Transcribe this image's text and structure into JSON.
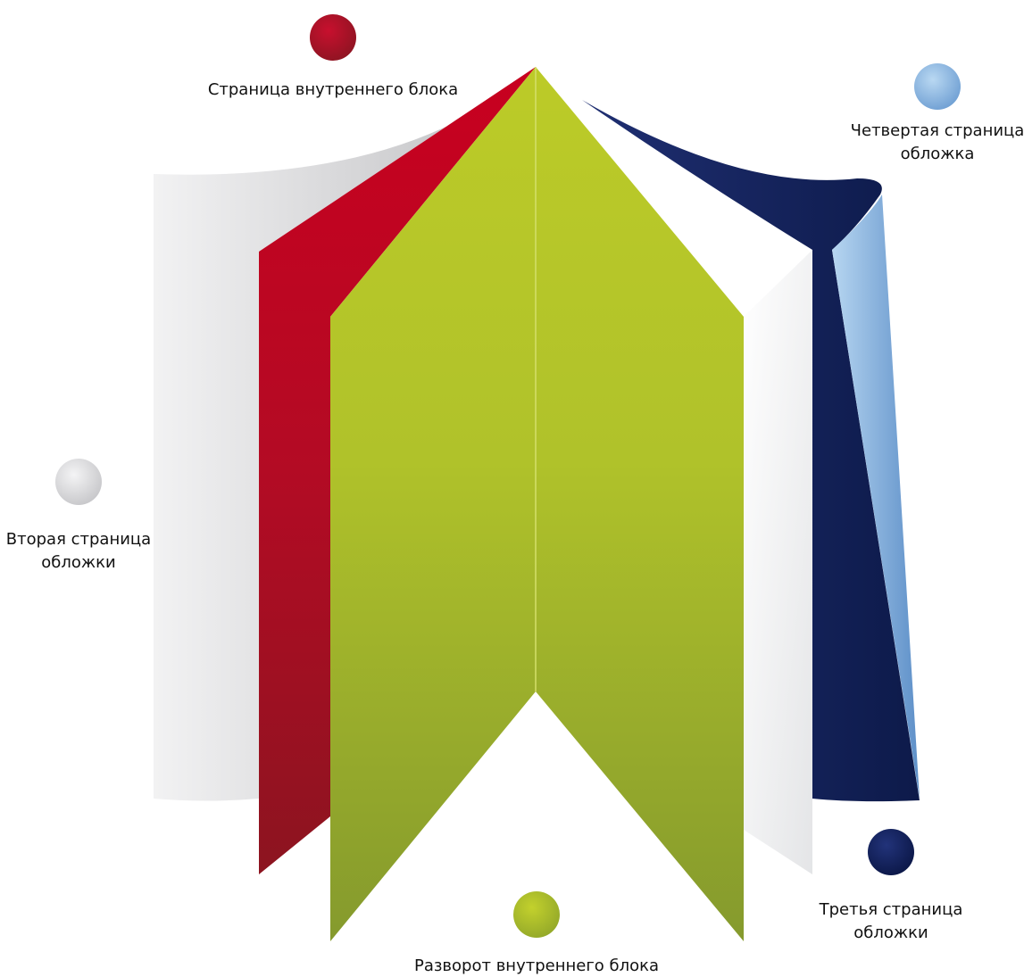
{
  "labels": [
    {
      "lines": [
        "Страница внутреннего блока"
      ]
    },
    {
      "lines": [
        "Четвертая страница",
        "обложка"
      ]
    },
    {
      "lines": [
        "Вторая страница",
        "обложки"
      ]
    },
    {
      "lines": [
        "Третья страница",
        "обложки"
      ]
    },
    {
      "lines": [
        "Разворот внутреннего блока"
      ]
    }
  ]
}
